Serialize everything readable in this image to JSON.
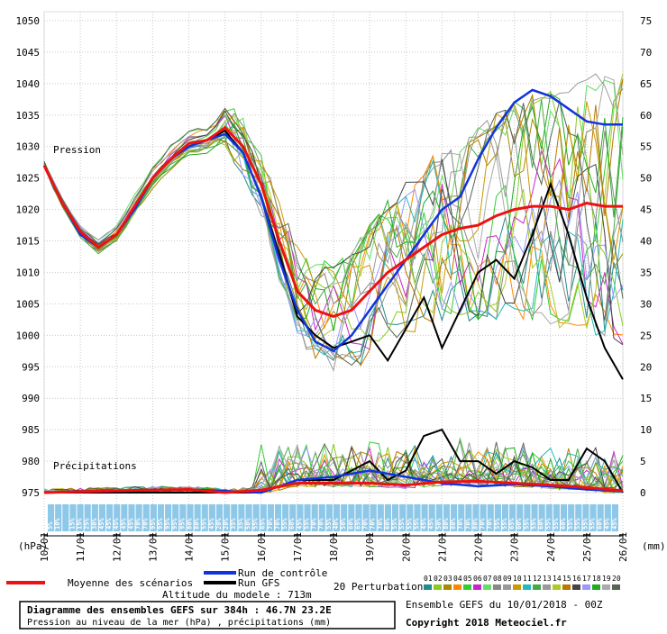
{
  "chart_data": {
    "type": "line",
    "title": "Diagramme des ensembles GEFS sur 384h : 46.7N 23.2E",
    "subtitle": "Pression au niveau de la mer (hPa) , précipitations (mm)",
    "model_info": "Ensemble GEFS du 10/01/2018 - 00Z",
    "copyright": "Copyright 2018 Meteociel.fr",
    "altitude": "Altitude du modele : 713m",
    "left_axis": {
      "unit_label": "(hPa)",
      "ticks": [
        1050,
        1045,
        1040,
        1035,
        1030,
        1025,
        1020,
        1015,
        1010,
        1005,
        1000,
        995,
        990,
        985,
        980,
        975
      ],
      "range": [
        975,
        1050
      ]
    },
    "right_axis": {
      "unit_label": "(mm)",
      "ticks": [
        75,
        70,
        65,
        60,
        55,
        50,
        45,
        40,
        35,
        30,
        25,
        20,
        15,
        10,
        5,
        0
      ],
      "range": [
        0,
        75
      ]
    },
    "x_axis": {
      "range": [
        0,
        384
      ],
      "dates": [
        "10/01",
        "11/01",
        "12/01",
        "13/01",
        "14/01",
        "15/01",
        "16/01",
        "17/01",
        "18/01",
        "19/01",
        "20/01",
        "21/01",
        "22/01",
        "23/01",
        "24/01",
        "25/01",
        "26/01"
      ]
    },
    "panel_labels": {
      "pressure": "Pression",
      "precip": "Précipitations"
    },
    "legend": {
      "mean": "Moyenne des scénarios",
      "control": "Run de contrôle",
      "gfs": "Run GFS",
      "perturbations": "20 Perturbations",
      "perturbation_ids": [
        "01",
        "02",
        "03",
        "04",
        "05",
        "06",
        "07",
        "08",
        "09",
        "10",
        "11",
        "12",
        "13",
        "14",
        "15",
        "16",
        "17",
        "18",
        "19",
        "20"
      ]
    },
    "colors": {
      "mean": "#ee1111",
      "control": "#1133dd",
      "gfs": "#000000",
      "perturbations": [
        "#228b8b",
        "#88cc22",
        "#aa8800",
        "#ff8800",
        "#33cc33",
        "#cc22cc",
        "#66dd66",
        "#888888",
        "#999999",
        "#cc9900",
        "#22bbbb",
        "#44aa44",
        "#999999",
        "#aacc22",
        "#bb7700",
        "#444444",
        "#9999ff",
        "#22aa22",
        "#aaaaaa",
        "#556655"
      ]
    },
    "probability_labels": [
      "5%",
      "10%",
      "",
      "15%",
      "15%",
      "25%",
      "30%",
      "45%",
      "45%",
      "45%",
      "45%",
      "45%",
      "70%",
      "70%",
      "95%",
      "95%",
      "95%",
      "95%",
      "95%",
      "80%",
      "80%",
      "55%",
      "45%",
      "20%",
      "20%",
      "35%",
      "35%",
      "50%",
      "55%",
      "65%",
      "70%",
      "70%",
      "55%",
      "60%",
      "45%",
      "55%",
      "70%",
      "70%",
      "55%",
      "40%",
      "50%",
      "60%",
      "65%",
      "70%",
      "70%",
      "70%",
      "60%",
      "55%",
      "55%",
      "55%",
      "55%",
      "45%",
      "45%",
      "50%",
      "80%",
      "80%",
      "70%",
      "70%",
      "80%",
      "70%",
      "70%",
      "55%",
      "55%",
      "65%",
      "60%",
      "55%",
      "55%",
      "60%",
      "55%",
      "55%",
      "60%",
      "55%",
      "55%",
      "55%",
      "55%",
      "60%",
      "45%",
      "45%"
    ],
    "series": [
      {
        "name": "Moyenne des scénarios",
        "role": "mean",
        "pressure": [
          [
            0,
            1027
          ],
          [
            12,
            1021
          ],
          [
            24,
            1016.5
          ],
          [
            36,
            1014
          ],
          [
            48,
            1016
          ],
          [
            60,
            1020.5
          ],
          [
            72,
            1025
          ],
          [
            84,
            1028
          ],
          [
            96,
            1030.5
          ],
          [
            108,
            1031
          ],
          [
            120,
            1033
          ],
          [
            132,
            1030
          ],
          [
            144,
            1024
          ],
          [
            156,
            1015
          ],
          [
            168,
            1007
          ],
          [
            180,
            1004
          ],
          [
            192,
            1003
          ],
          [
            204,
            1004
          ],
          [
            216,
            1007
          ],
          [
            228,
            1010
          ],
          [
            240,
            1012
          ],
          [
            252,
            1014
          ],
          [
            264,
            1016
          ],
          [
            276,
            1017
          ],
          [
            288,
            1017.5
          ],
          [
            300,
            1019
          ],
          [
            312,
            1020
          ],
          [
            324,
            1020.5
          ],
          [
            336,
            1020.5
          ],
          [
            348,
            1020
          ],
          [
            360,
            1021
          ],
          [
            372,
            1020.5
          ],
          [
            384,
            1020.5
          ]
        ],
        "precip": [
          [
            0,
            0
          ],
          [
            48,
            0.3
          ],
          [
            96,
            0.5
          ],
          [
            120,
            0
          ],
          [
            144,
            0.4
          ],
          [
            168,
            1.5
          ],
          [
            192,
            1.5
          ],
          [
            216,
            1.5
          ],
          [
            240,
            1.2
          ],
          [
            264,
            1.7
          ],
          [
            288,
            1.8
          ],
          [
            312,
            1.5
          ],
          [
            336,
            1.2
          ],
          [
            360,
            0.8
          ],
          [
            384,
            0.3
          ]
        ]
      },
      {
        "name": "Run de contrôle",
        "role": "control",
        "pressure": [
          [
            0,
            1027
          ],
          [
            12,
            1021
          ],
          [
            24,
            1016
          ],
          [
            36,
            1014
          ],
          [
            48,
            1016
          ],
          [
            60,
            1020
          ],
          [
            72,
            1025
          ],
          [
            84,
            1028
          ],
          [
            96,
            1030
          ],
          [
            108,
            1031
          ],
          [
            120,
            1032
          ],
          [
            132,
            1029
          ],
          [
            144,
            1022
          ],
          [
            156,
            1012
          ],
          [
            168,
            1004
          ],
          [
            180,
            999
          ],
          [
            192,
            997.5
          ],
          [
            204,
            1000
          ],
          [
            216,
            1004
          ],
          [
            228,
            1008
          ],
          [
            240,
            1012
          ],
          [
            252,
            1016
          ],
          [
            264,
            1020
          ],
          [
            276,
            1022
          ],
          [
            288,
            1028
          ],
          [
            300,
            1033
          ],
          [
            312,
            1037
          ],
          [
            324,
            1039
          ],
          [
            336,
            1038
          ],
          [
            348,
            1036
          ],
          [
            360,
            1034
          ],
          [
            372,
            1033.5
          ],
          [
            384,
            1033.5
          ]
        ],
        "precip": [
          [
            0,
            0
          ],
          [
            96,
            0.5
          ],
          [
            144,
            0
          ],
          [
            168,
            2
          ],
          [
            192,
            2.5
          ],
          [
            216,
            3.5
          ],
          [
            240,
            2.5
          ],
          [
            264,
            1.5
          ],
          [
            288,
            1.0
          ],
          [
            312,
            1.3
          ],
          [
            336,
            1.0
          ],
          [
            360,
            0.5
          ],
          [
            384,
            0.2
          ]
        ]
      },
      {
        "name": "Run GFS",
        "role": "gfs",
        "pressure": [
          [
            0,
            1027
          ],
          [
            12,
            1021
          ],
          [
            24,
            1016
          ],
          [
            36,
            1014
          ],
          [
            48,
            1016
          ],
          [
            60,
            1020
          ],
          [
            72,
            1025
          ],
          [
            84,
            1028
          ],
          [
            96,
            1030
          ],
          [
            108,
            1031
          ],
          [
            120,
            1032.5
          ],
          [
            132,
            1029
          ],
          [
            144,
            1022
          ],
          [
            156,
            1013
          ],
          [
            168,
            1003
          ],
          [
            180,
            1000
          ],
          [
            192,
            998
          ],
          [
            204,
            999
          ],
          [
            216,
            1000
          ],
          [
            228,
            996
          ],
          [
            240,
            1001
          ],
          [
            252,
            1006
          ],
          [
            264,
            998
          ],
          [
            276,
            1004
          ],
          [
            288,
            1010
          ],
          [
            300,
            1012
          ],
          [
            312,
            1009
          ],
          [
            324,
            1016
          ],
          [
            336,
            1024
          ],
          [
            348,
            1016
          ],
          [
            360,
            1006
          ],
          [
            372,
            998
          ],
          [
            384,
            993
          ]
        ],
        "precip": [
          [
            0,
            0
          ],
          [
            144,
            0
          ],
          [
            168,
            2
          ],
          [
            192,
            2
          ],
          [
            216,
            5
          ],
          [
            228,
            2
          ],
          [
            240,
            3.5
          ],
          [
            252,
            9
          ],
          [
            264,
            10
          ],
          [
            276,
            5
          ],
          [
            288,
            5
          ],
          [
            300,
            3
          ],
          [
            312,
            5
          ],
          [
            324,
            4
          ],
          [
            336,
            2
          ],
          [
            348,
            2
          ],
          [
            360,
            7
          ],
          [
            372,
            5
          ],
          [
            384,
            0
          ]
        ]
      }
    ]
  }
}
